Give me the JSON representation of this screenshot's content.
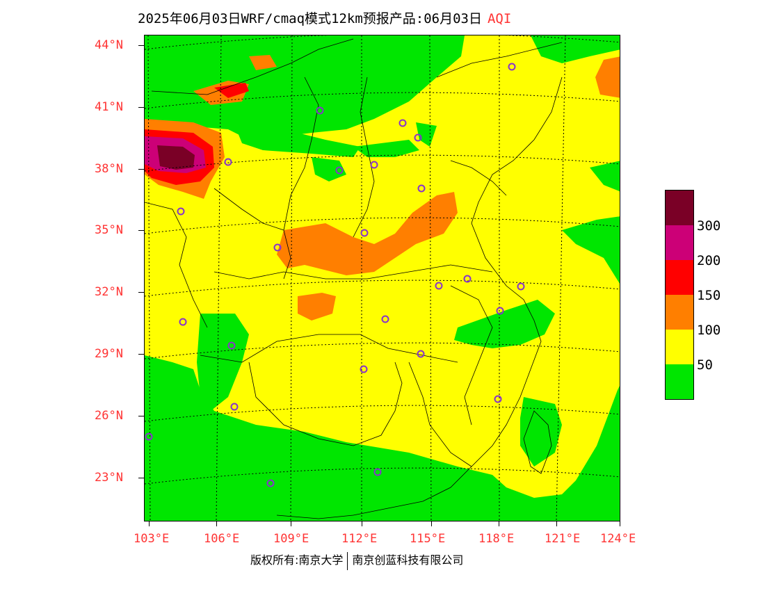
{
  "title": {
    "main": "2025年06月03日WRF/cmaq模式12km预报产品:06月03日",
    "variable": "AQI"
  },
  "axes": {
    "lat_labels": [
      "44°N",
      "41°N",
      "38°N",
      "35°N",
      "32°N",
      "29°N",
      "26°N",
      "23°N"
    ],
    "lon_labels": [
      "103°E",
      "106°E",
      "109°E",
      "112°E",
      "115°E",
      "118°E",
      "121°E",
      "124°E"
    ]
  },
  "legend": {
    "labels": [
      "300",
      "200",
      "150",
      "100",
      "50"
    ],
    "colors": [
      "#7a0026",
      "#cc0077",
      "#ff0000",
      "#ff7f00",
      "#ffff00",
      "#00e600"
    ]
  },
  "colors": {
    "good": "#00e600",
    "moderate": "#ffff00",
    "usg": "#ff7f00",
    "unhealthy": "#ff0000",
    "very_unhealthy": "#cc0077",
    "hazardous": "#7a0026",
    "label_red": "#ff3333",
    "station": "#8833cc"
  },
  "footer": {
    "left": "版权所有:南京大学",
    "right": "南京创蓝科技有限公司"
  }
}
